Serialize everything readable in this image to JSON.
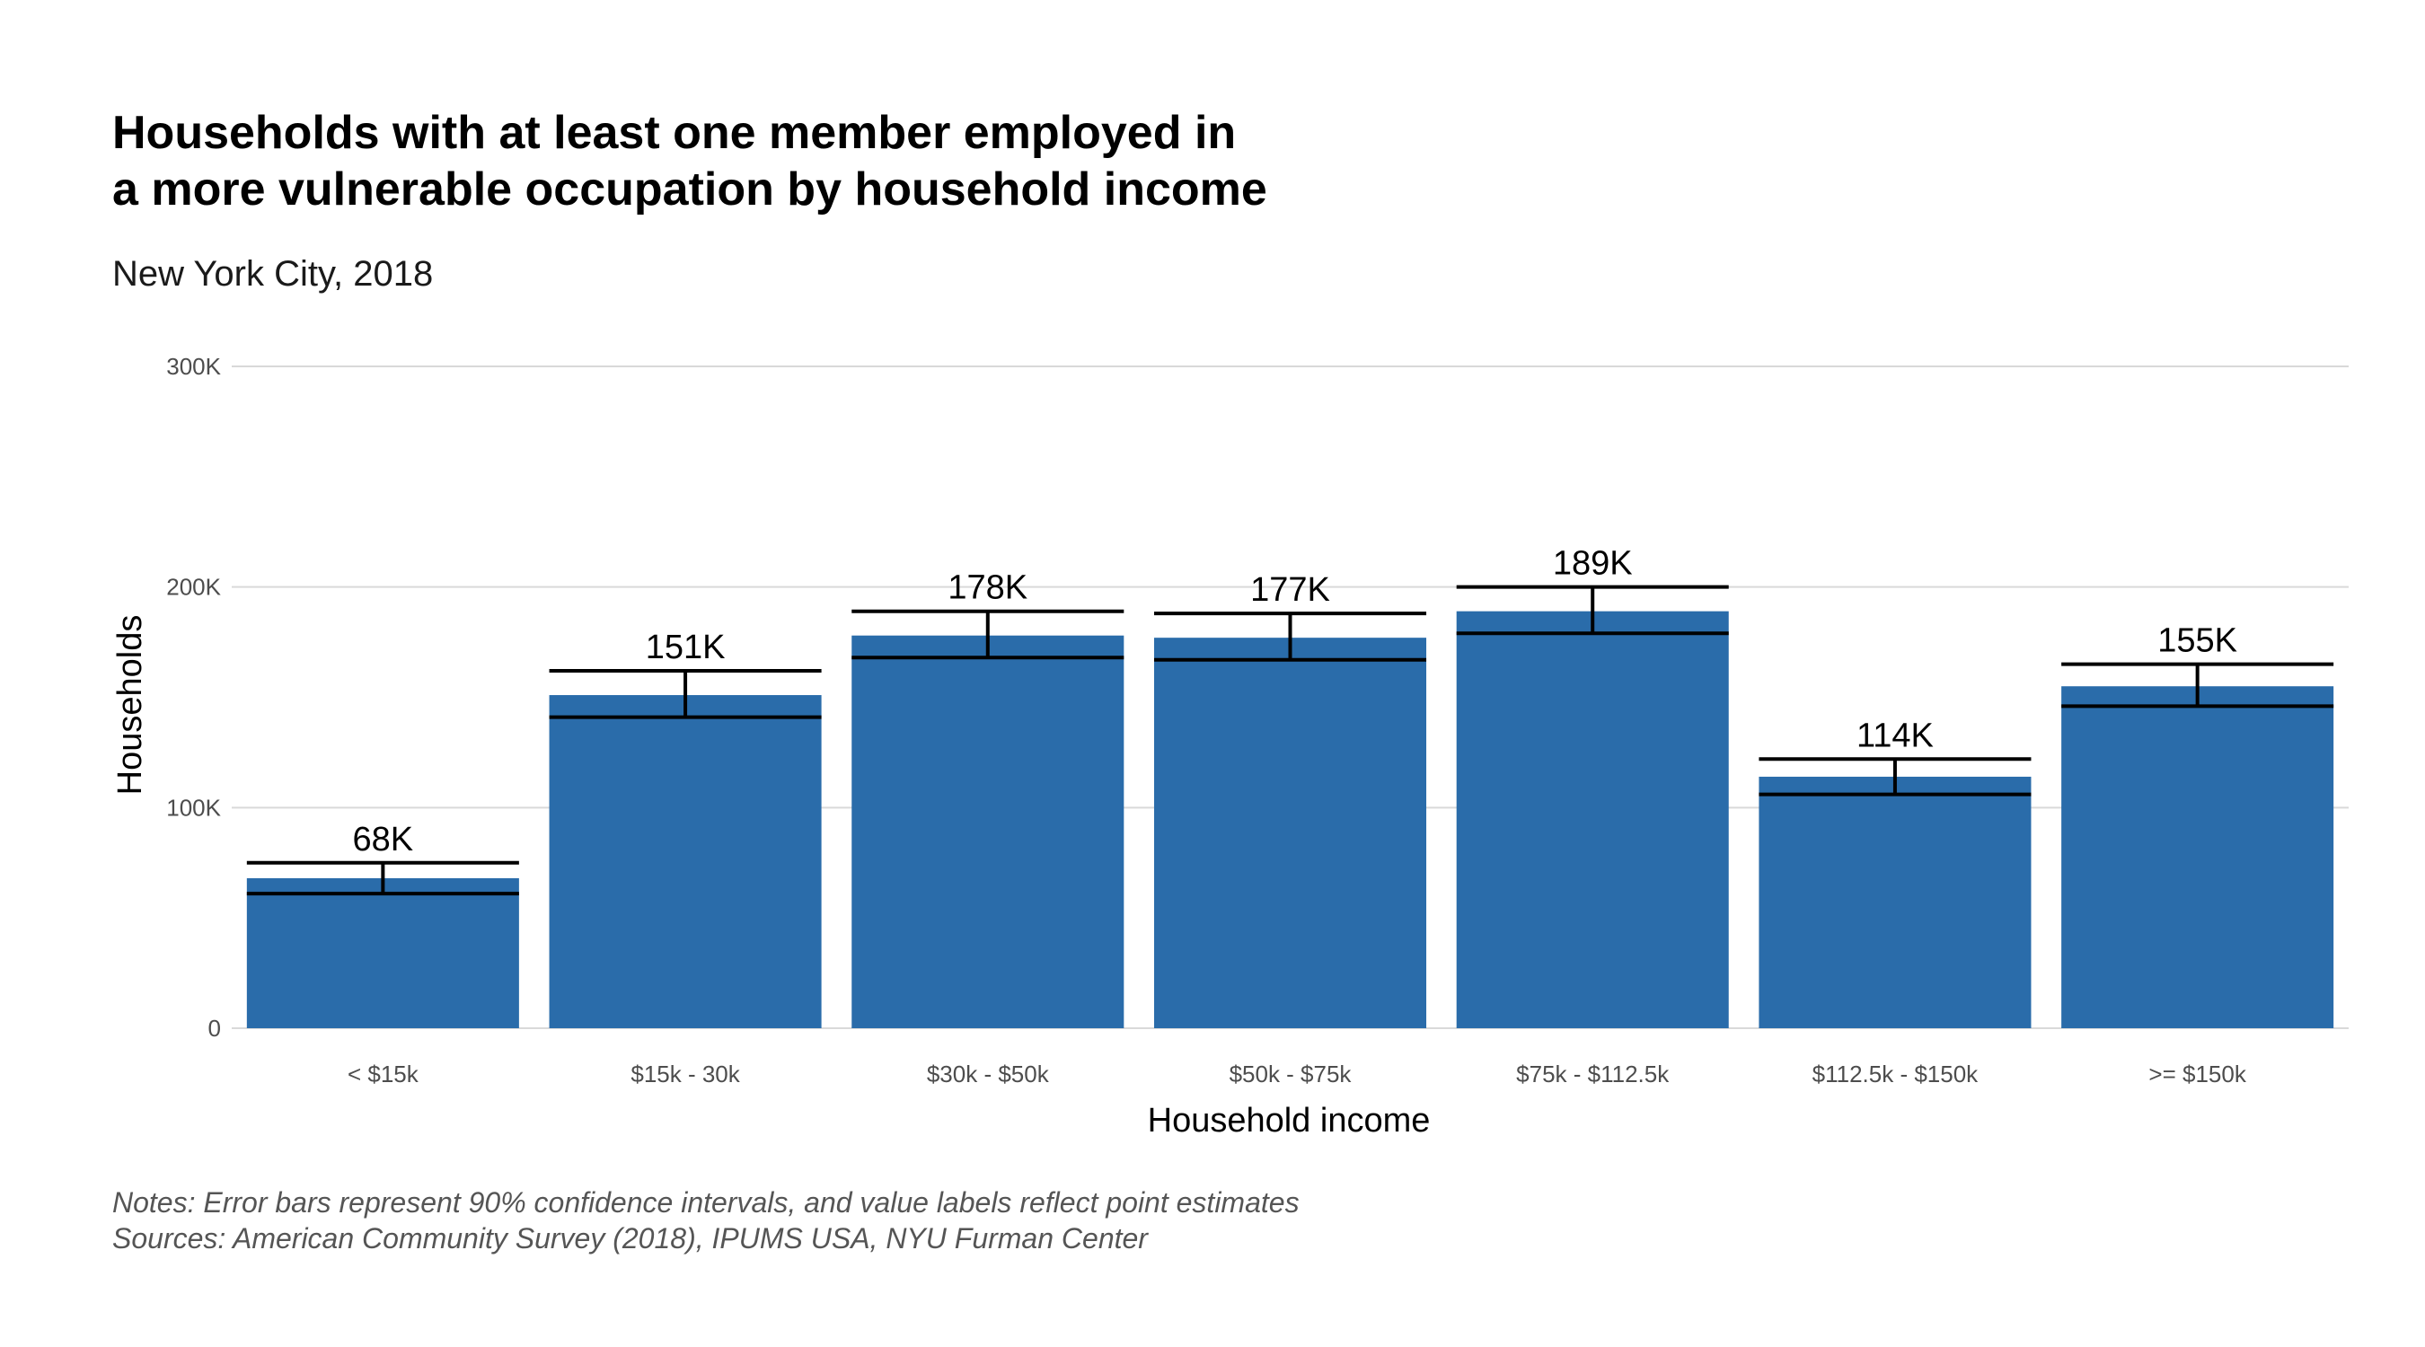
{
  "chart_data": {
    "type": "bar",
    "title_lines": [
      "Households with at least one member employed in",
      "a more vulnerable occupation by household income"
    ],
    "subtitle": "New York City, 2018",
    "xlabel": "Household income",
    "ylabel": "Households",
    "ylim": [
      0,
      300000
    ],
    "yticks": [
      {
        "value": 0,
        "label": "0"
      },
      {
        "value": 100000,
        "label": "100K"
      },
      {
        "value": 200000,
        "label": "200K"
      },
      {
        "value": 300000,
        "label": "300K"
      }
    ],
    "grid": true,
    "categories": [
      "< $15k",
      "$15k - 30k",
      "$30k - $50k",
      "$50k - $75k",
      "$75k - $112.5k",
      "$112.5k - $150k",
      ">= $150k"
    ],
    "values": [
      68000,
      151000,
      178000,
      177000,
      189000,
      114000,
      155000
    ],
    "value_labels": [
      "68K",
      "151K",
      "178K",
      "177K",
      "189K",
      "114K",
      "155K"
    ],
    "ci_low": [
      61000,
      141000,
      168000,
      167000,
      179000,
      106000,
      146000
    ],
    "ci_high": [
      75000,
      162000,
      189000,
      188000,
      200000,
      122000,
      165000
    ],
    "bar_color": "#2a6caa",
    "caption_lines": [
      "Notes: Error bars represent 90% confidence intervals, and value labels reflect point estimates",
      "Sources: American Community Survey (2018), IPUMS USA, NYU Furman Center"
    ]
  }
}
